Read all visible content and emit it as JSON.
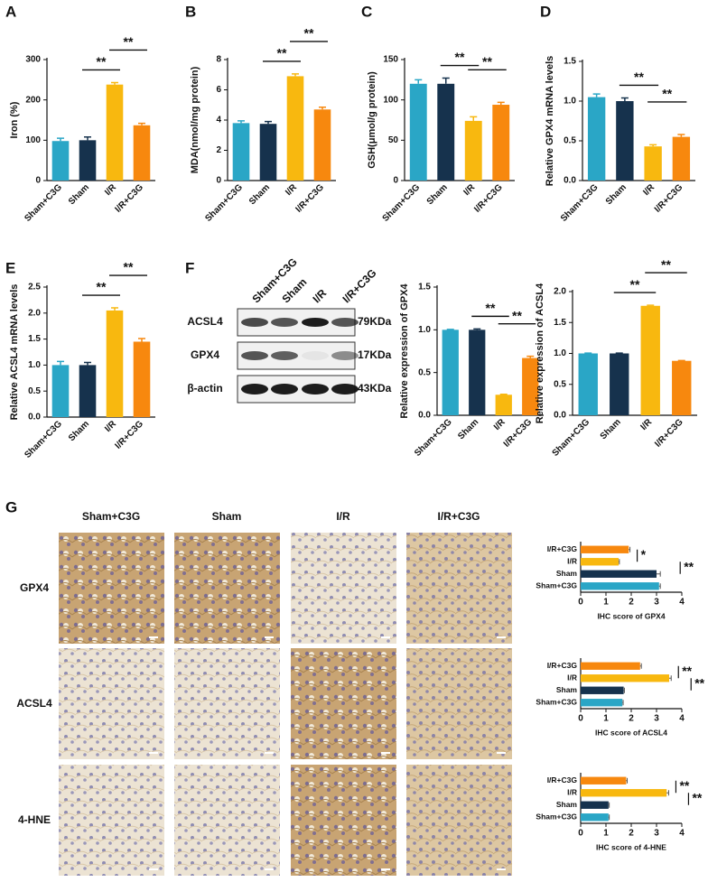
{
  "chart_data": [
    {
      "type": "bar",
      "panel": "A",
      "ylabel": "Iron (%)",
      "categories": [
        "Sham+C3G",
        "Sham",
        "I/R",
        "I/R+C3G"
      ],
      "values": [
        98,
        100,
        238,
        137
      ],
      "errors": [
        7,
        8,
        5,
        5
      ],
      "colors": [
        "#2aa6c6",
        "#16324d",
        "#f8b80f",
        "#f7880e"
      ],
      "ylim": [
        0,
        300
      ],
      "yticks": [
        0,
        100,
        200,
        300
      ],
      "significance": [
        {
          "text": "**",
          "between": [
            "Sham",
            "I/R"
          ]
        },
        {
          "text": "**",
          "between": [
            "I/R",
            "I/R+C3G"
          ]
        }
      ]
    },
    {
      "type": "bar",
      "panel": "B",
      "ylabel": "MDA(nmol/mg protein)",
      "categories": [
        "Sham+C3G",
        "Sham",
        "I/R",
        "I/R+C3G"
      ],
      "values": [
        3.8,
        3.75,
        6.9,
        4.7
      ],
      "errors": [
        0.15,
        0.15,
        0.15,
        0.15
      ],
      "colors": [
        "#2aa6c6",
        "#16324d",
        "#f8b80f",
        "#f7880e"
      ],
      "ylim": [
        0,
        8
      ],
      "yticks": [
        0,
        2,
        4,
        6,
        8
      ],
      "significance": [
        {
          "text": "**",
          "between": [
            "Sham",
            "I/R"
          ]
        },
        {
          "text": "**",
          "between": [
            "I/R",
            "I/R+C3G"
          ]
        }
      ]
    },
    {
      "type": "bar",
      "panel": "C",
      "ylabel": "GSH(μmol/g protein)",
      "categories": [
        "Sham+C3G",
        "Sham",
        "I/R",
        "I/R+C3G"
      ],
      "values": [
        120,
        120,
        74,
        94
      ],
      "errors": [
        5,
        7,
        5,
        3
      ],
      "colors": [
        "#2aa6c6",
        "#16324d",
        "#f8b80f",
        "#f7880e"
      ],
      "ylim": [
        0,
        150
      ],
      "yticks": [
        0,
        50,
        100,
        150
      ],
      "significance": [
        {
          "text": "**",
          "between": [
            "Sham",
            "I/R"
          ]
        },
        {
          "text": "**",
          "between": [
            "I/R",
            "I/R+C3G"
          ]
        }
      ]
    },
    {
      "type": "bar",
      "panel": "D",
      "ylabel": "Relative GPX4 mRNA levels",
      "categories": [
        "Sham+C3G",
        "Sham",
        "I/R",
        "I/R+C3G"
      ],
      "values": [
        1.05,
        1.0,
        0.43,
        0.55
      ],
      "errors": [
        0.04,
        0.04,
        0.02,
        0.03
      ],
      "colors": [
        "#2aa6c6",
        "#16324d",
        "#f8b80f",
        "#f7880e"
      ],
      "ylim": [
        0,
        1.5
      ],
      "yticks": [
        {
          "value": 0,
          "label": "0.0"
        },
        0.5,
        {
          "value": 1,
          "label": "1.0"
        },
        1.5
      ],
      "significance": [
        {
          "text": "**",
          "between": [
            "Sham",
            "I/R"
          ]
        },
        {
          "text": "**",
          "between": [
            "I/R",
            "I/R+C3G"
          ]
        }
      ]
    },
    {
      "type": "bar",
      "panel": "E",
      "ylabel": "Relative ACSL4 mRNA levels",
      "categories": [
        "Sham+C3G",
        "Sham",
        "I/R",
        "I/R+C3G"
      ],
      "values": [
        1.0,
        1.0,
        2.05,
        1.45
      ],
      "errors": [
        0.07,
        0.05,
        0.05,
        0.06
      ],
      "colors": [
        "#2aa6c6",
        "#16324d",
        "#f8b80f",
        "#f7880e"
      ],
      "ylim": [
        0,
        2.5
      ],
      "yticks": [
        {
          "value": 0,
          "label": "0.0"
        },
        0.5,
        {
          "value": 1,
          "label": "1.0"
        },
        1.5,
        {
          "value": 2,
          "label": "2.0"
        },
        2.5
      ],
      "significance": [
        {
          "text": "**",
          "between": [
            "Sham",
            "I/R"
          ]
        },
        {
          "text": "**",
          "between": [
            "I/R",
            "I/R+C3G"
          ]
        }
      ]
    },
    {
      "type": "bar",
      "ylabel": "Relative expression of GPX4",
      "categories": [
        "Sham+C3G",
        "Sham",
        "I/R",
        "I/R+C3G"
      ],
      "values": [
        1.0,
        1.0,
        0.24,
        0.67
      ],
      "errors": [
        0.005,
        0.01,
        0.005,
        0.02
      ],
      "colors": [
        "#2aa6c6",
        "#16324d",
        "#f8b80f",
        "#f7880e"
      ],
      "ylim": [
        0,
        1.5
      ],
      "yticks": [
        {
          "value": 0,
          "label": "0.0"
        },
        0.5,
        {
          "value": 1,
          "label": "1.0"
        },
        1.5
      ],
      "significance": [
        {
          "text": "**",
          "between": [
            "Sham",
            "I/R"
          ]
        },
        {
          "text": "**",
          "between": [
            "I/R",
            "I/R+C3G"
          ]
        }
      ]
    },
    {
      "type": "bar",
      "ylabel": "Relative expression of ACSL4",
      "categories": [
        "Sham+C3G",
        "Sham",
        "I/R",
        "I/R+C3G"
      ],
      "values": [
        1.0,
        1.0,
        1.77,
        0.88
      ],
      "errors": [
        0.005,
        0.005,
        0.01,
        0.005
      ],
      "colors": [
        "#2aa6c6",
        "#16324d",
        "#f8b80f",
        "#f7880e"
      ],
      "ylim": [
        0,
        2
      ],
      "yticks": [
        {
          "value": 0,
          "label": "0.0"
        },
        0.5,
        {
          "value": 1,
          "label": "1.0"
        },
        1.5,
        {
          "value": 2,
          "label": "2.0"
        }
      ],
      "significance": [
        {
          "text": "**",
          "between": [
            "Sham",
            "I/R"
          ]
        },
        {
          "text": "**",
          "between": [
            "I/R",
            "I/R+C3G"
          ]
        }
      ]
    },
    {
      "type": "bar",
      "orientation": "horizontal",
      "xlabel": "IHC score of GPX4",
      "categories": [
        "Sham+C3G",
        "Sham",
        "I/R",
        "I/R+C3G"
      ],
      "values": [
        3.1,
        3.0,
        1.5,
        1.9
      ],
      "errors": [
        0.05,
        0.15,
        0.03,
        0.05
      ],
      "colors": [
        "#2aa6c6",
        "#16324d",
        "#f8b80f",
        "#f7880e"
      ],
      "xlim": [
        0,
        4
      ],
      "xticks": [
        0,
        1,
        2,
        3,
        4
      ],
      "significance": [
        {
          "text": "*",
          "between": [
            "I/R",
            "I/R+C3G"
          ]
        },
        {
          "text": "**",
          "between": [
            "Sham",
            "I/R"
          ]
        }
      ]
    },
    {
      "type": "bar",
      "orientation": "horizontal",
      "xlabel": "IHC score of ACSL4",
      "categories": [
        "Sham+C3G",
        "Sham",
        "I/R",
        "I/R+C3G"
      ],
      "values": [
        1.65,
        1.7,
        3.5,
        2.35
      ],
      "errors": [
        0.03,
        0.03,
        0.08,
        0.05
      ],
      "colors": [
        "#2aa6c6",
        "#16324d",
        "#f8b80f",
        "#f7880e"
      ],
      "xlim": [
        0,
        4
      ],
      "xticks": [
        0,
        1,
        2,
        3,
        4
      ],
      "significance": [
        {
          "text": "**",
          "between": [
            "I/R",
            "I/R+C3G"
          ]
        },
        {
          "text": "**",
          "between": [
            "Sham",
            "I/R"
          ]
        }
      ]
    },
    {
      "type": "bar",
      "orientation": "horizontal",
      "xlabel": "IHC score of 4-HNE",
      "categories": [
        "Sham+C3G",
        "Sham",
        "I/R",
        "I/R+C3G"
      ],
      "values": [
        1.1,
        1.1,
        3.4,
        1.8
      ],
      "errors": [
        0.03,
        0.03,
        0.08,
        0.04
      ],
      "colors": [
        "#2aa6c6",
        "#16324d",
        "#f8b80f",
        "#f7880e"
      ],
      "xlim": [
        0,
        4
      ],
      "xticks": [
        0,
        1,
        2,
        3,
        4
      ],
      "significance": [
        {
          "text": "**",
          "between": [
            "I/R",
            "I/R+C3G"
          ]
        },
        {
          "text": "**",
          "between": [
            "Sham",
            "I/R"
          ]
        }
      ]
    }
  ],
  "blot": {
    "panel": "F",
    "lanes": [
      "Sham+C3G",
      "Sham",
      "I/R",
      "I/R+C3G"
    ],
    "rows": [
      {
        "protein": "ACSL4",
        "size": "79KDa"
      },
      {
        "protein": "GPX4",
        "size": "17KDa"
      },
      {
        "protein": "β-actin",
        "size": "43KDa"
      }
    ]
  },
  "ihc": {
    "panel": "G",
    "columns": [
      "Sham+C3G",
      "Sham",
      "I/R",
      "I/R+C3G"
    ],
    "rows": [
      "GPX4",
      "ACSL4",
      "4-HNE"
    ]
  }
}
